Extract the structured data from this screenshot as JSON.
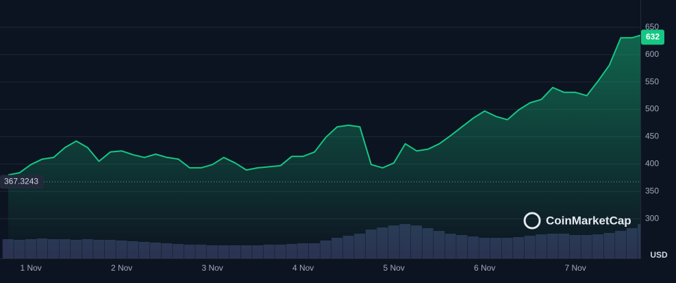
{
  "chart_data": {
    "type": "area",
    "categories": [
      null,
      null,
      "1 Nov",
      null,
      null,
      null,
      null,
      null,
      null,
      null,
      "2 Nov",
      null,
      null,
      null,
      null,
      null,
      null,
      null,
      "3 Nov",
      null,
      null,
      null,
      null,
      null,
      null,
      null,
      "4 Nov",
      null,
      null,
      null,
      null,
      null,
      null,
      null,
      "5 Nov",
      null,
      null,
      null,
      null,
      null,
      null,
      null,
      "6 Nov",
      null,
      null,
      null,
      null,
      null,
      null,
      null,
      "7 Nov",
      null,
      null,
      null,
      null,
      null,
      null
    ],
    "series": [
      {
        "color": "#16c784",
        "values": [
          380,
          384,
          399,
          409,
          412,
          430,
          442,
          430,
          405,
          422,
          424,
          417,
          412,
          418,
          412,
          409,
          393,
          393,
          399,
          412,
          402,
          389,
          393,
          395,
          397,
          414,
          414,
          422,
          449,
          468,
          471,
          468,
          399,
          393,
          402,
          437,
          424,
          427,
          437,
          452,
          468,
          484,
          497,
          487,
          481,
          499,
          512,
          518,
          540,
          531,
          531,
          525,
          552,
          581,
          631,
          631,
          637
        ]
      }
    ],
    "volume": {
      "color": "#2a3352",
      "ylim": [
        0,
        100
      ],
      "values": [
        28,
        27,
        28,
        29,
        28,
        28,
        27,
        28,
        27,
        27,
        26,
        25,
        24,
        23,
        22,
        21,
        20,
        20,
        19,
        19,
        19,
        19,
        19,
        20,
        20,
        21,
        22,
        22,
        26,
        30,
        33,
        36,
        42,
        45,
        48,
        50,
        48,
        44,
        40,
        36,
        34,
        32,
        30,
        30,
        30,
        31,
        33,
        35,
        36,
        36,
        34,
        34,
        35,
        37,
        40,
        44,
        50
      ]
    },
    "ylim": [
      230,
      700
    ],
    "yticks": [
      300,
      350,
      400,
      450,
      500,
      550,
      600,
      650
    ],
    "grid": true,
    "y_axis_label": "USD",
    "reference_line": 367.3243,
    "current_price": 632,
    "watermark": "CoinMarketCap"
  }
}
